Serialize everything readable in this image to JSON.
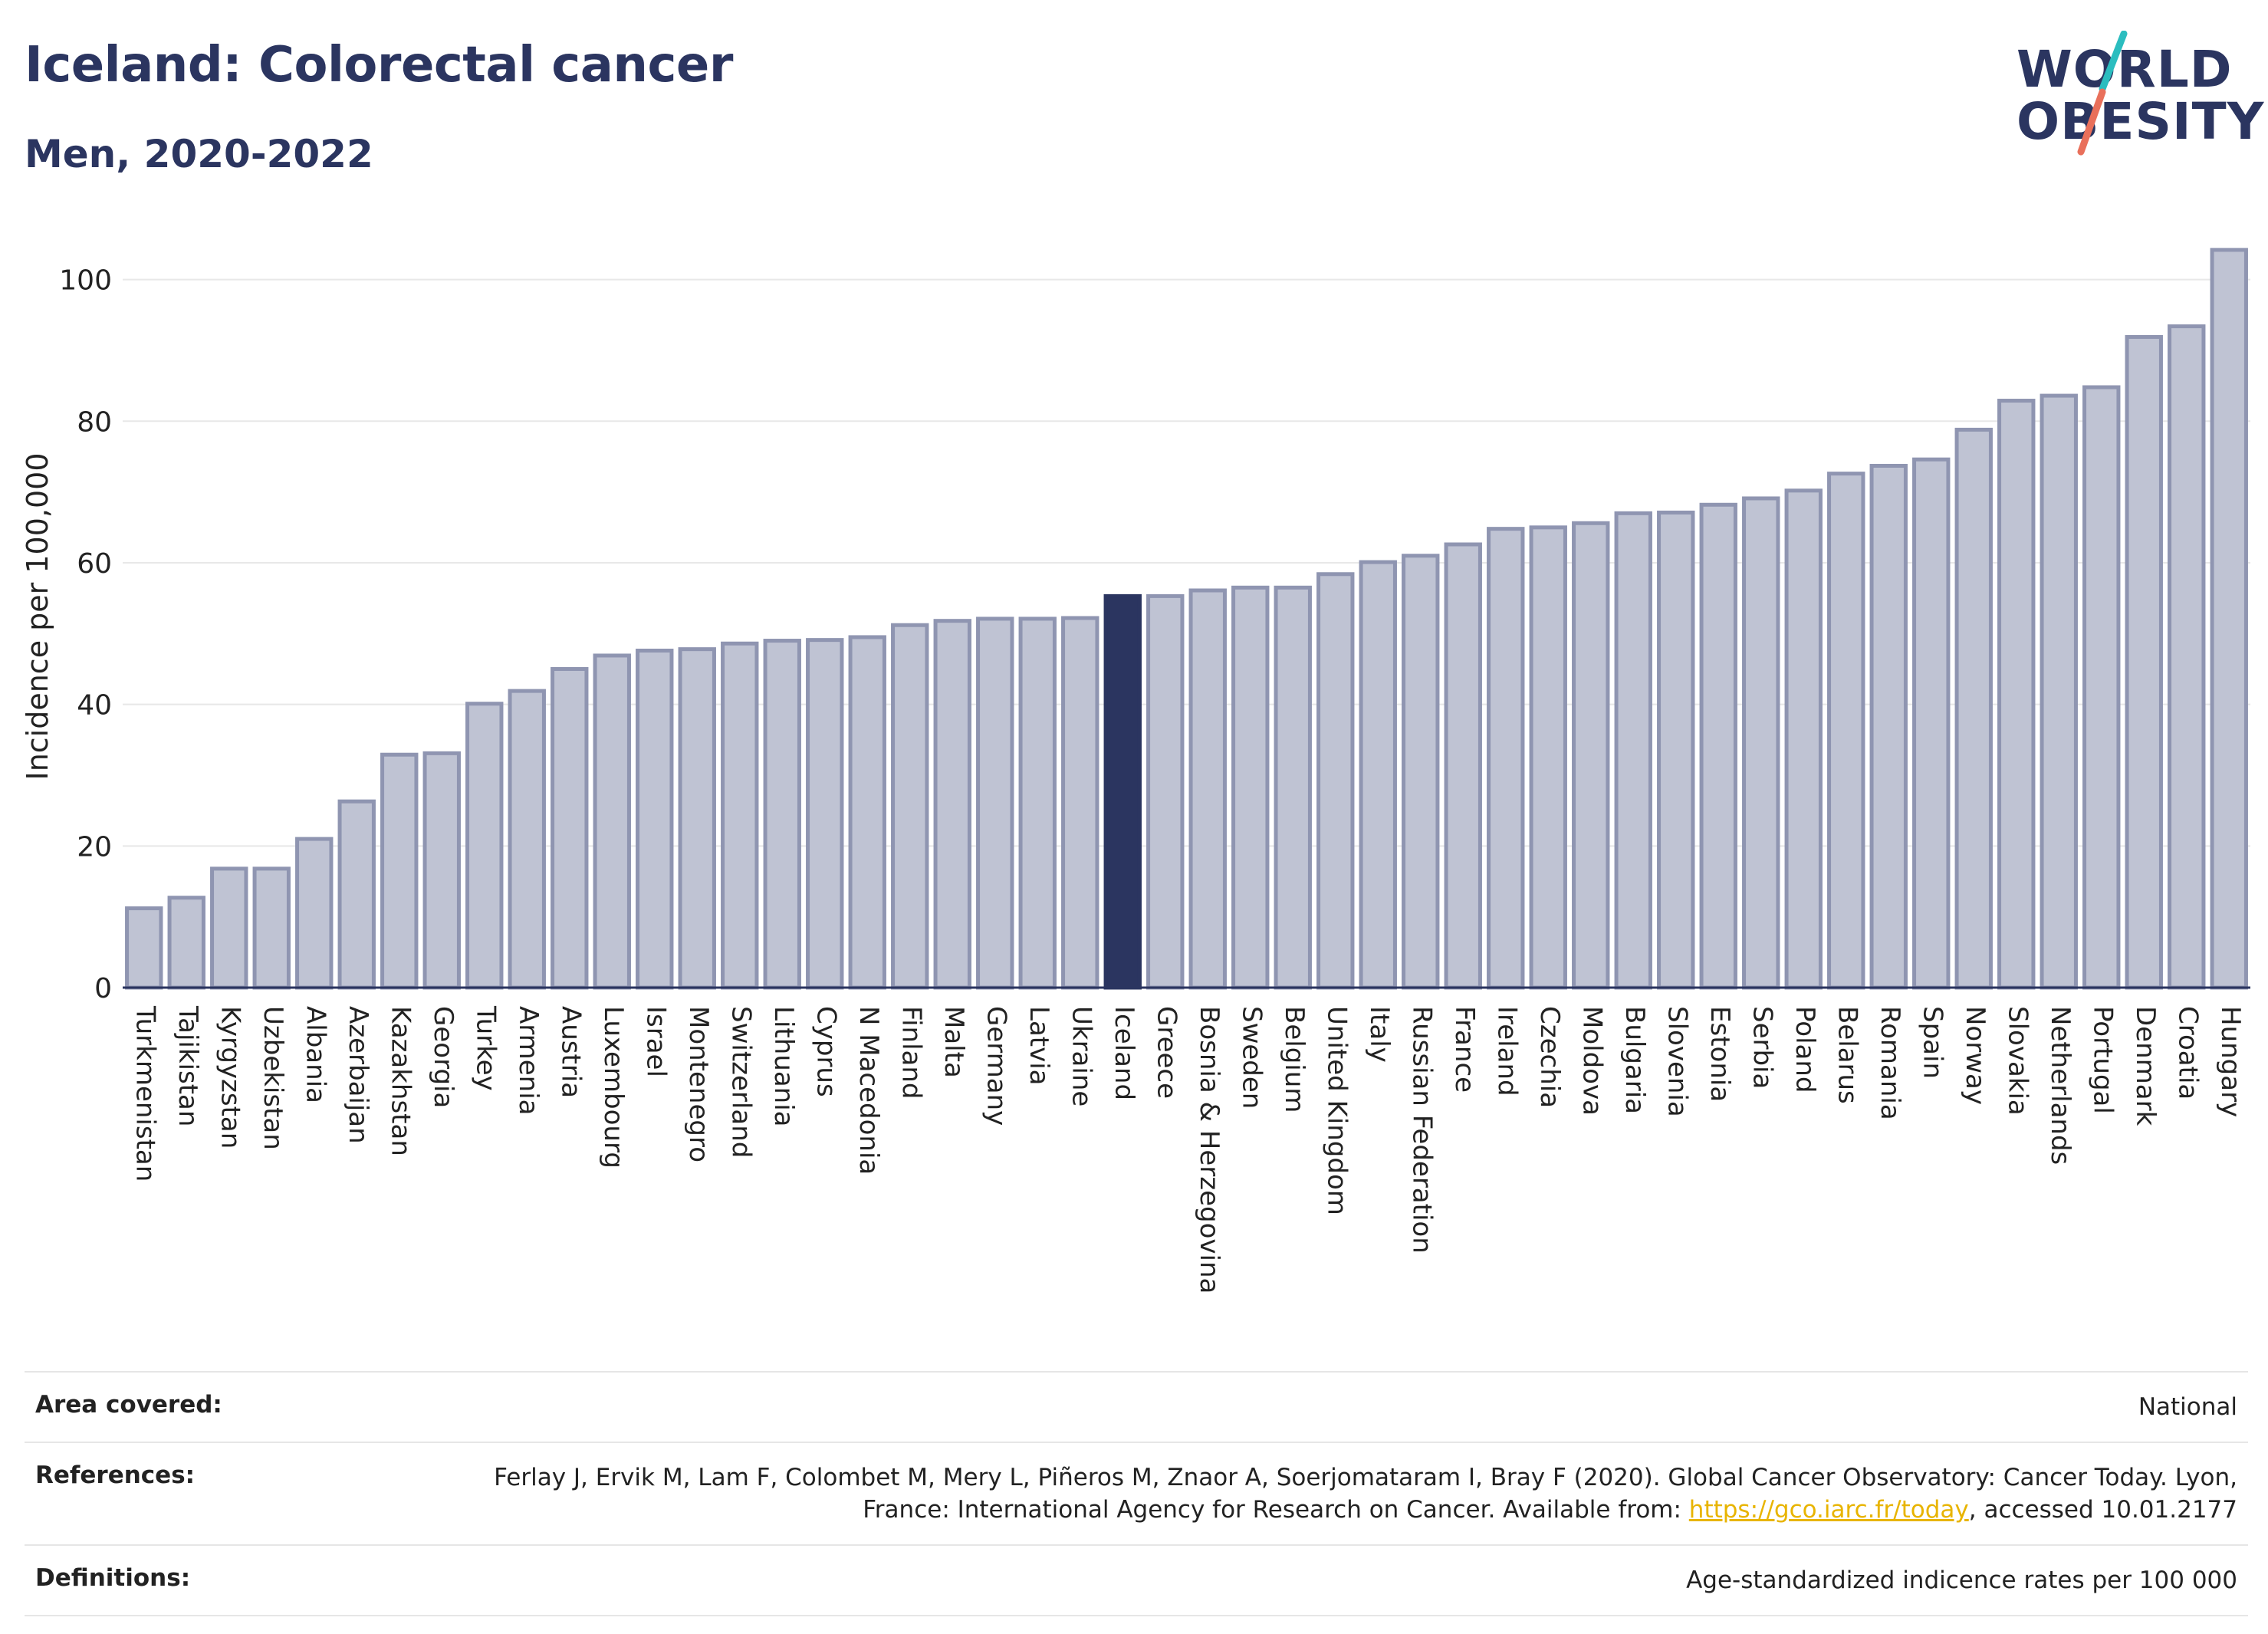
{
  "header": {
    "title": "Iceland: Colorectal cancer",
    "subtitle": "Men, 2020-2022"
  },
  "logo": {
    "line1": "WORLD",
    "line2": "OBESITY",
    "accent_colors": [
      "#2bbdbf",
      "#e9705b"
    ]
  },
  "colors": {
    "bar": "#bfc3d3",
    "bar_stroke": "#8f95b1",
    "highlight": "#2b3560",
    "grid": "#e8e8e8",
    "axis": "#2b3560"
  },
  "chart_data": {
    "type": "bar",
    "title": "",
    "xlabel": "",
    "ylabel": "Incidence per 100,000",
    "ylim": [
      0,
      107
    ],
    "yticks": [
      0,
      20,
      40,
      60,
      80,
      100
    ],
    "highlight": "Iceland",
    "grid": true,
    "categories": [
      "Turkmenistan",
      "Tajikistan",
      "Kyrgyzstan",
      "Uzbekistan",
      "Albania",
      "Azerbaijan",
      "Kazakhstan",
      "Georgia",
      "Turkey",
      "Armenia",
      "Austria",
      "Luxembourg",
      "Israel",
      "Montenegro",
      "Switzerland",
      "Lithuania",
      "Cyprus",
      "N Macedonia",
      "Finland",
      "Malta",
      "Germany",
      "Latvia",
      "Ukraine",
      "Iceland",
      "Greece",
      "Bosnia & Herzegovina",
      "Sweden",
      "Belgium",
      "United Kingdom",
      "Italy",
      "Russian Federation",
      "France",
      "Ireland",
      "Czechia",
      "Moldova",
      "Bulgaria",
      "Slovenia",
      "Estonia",
      "Serbia",
      "Poland",
      "Belarus",
      "Romania",
      "Spain",
      "Norway",
      "Slovakia",
      "Netherlands",
      "Portugal",
      "Denmark",
      "Croatia",
      "Hungary"
    ],
    "values": [
      11.2,
      12.7,
      16.8,
      16.8,
      21.0,
      26.3,
      32.9,
      33.1,
      40.1,
      41.9,
      45.0,
      46.9,
      47.6,
      47.8,
      48.6,
      49.0,
      49.1,
      49.5,
      51.2,
      51.8,
      52.1,
      52.1,
      52.2,
      55.3,
      55.3,
      56.1,
      56.5,
      56.5,
      58.4,
      60.1,
      61.0,
      62.6,
      64.8,
      65.0,
      65.6,
      67.0,
      67.1,
      68.2,
      69.1,
      70.2,
      72.6,
      73.7,
      74.6,
      78.8,
      82.9,
      83.6,
      84.8,
      91.9,
      93.4,
      104.2
    ]
  },
  "meta": {
    "area_label": "Area covered:",
    "area_value": "National",
    "references_label": "References:",
    "references_text_1": "Ferlay J, Ervik M, Lam F, Colombet M, Mery L, Piñeros M, Znaor A, Soerjomataram I, Bray F (2020). Global Cancer Observatory: Cancer Today. Lyon, France: International Agency for Research on Cancer. Available from: ",
    "references_link": "https://gco.iarc.fr/today",
    "references_text_2": ", accessed 10.01.2177",
    "definitions_label": "Definitions:",
    "definitions_value": "Age-standardized indicence rates per 100 000"
  }
}
